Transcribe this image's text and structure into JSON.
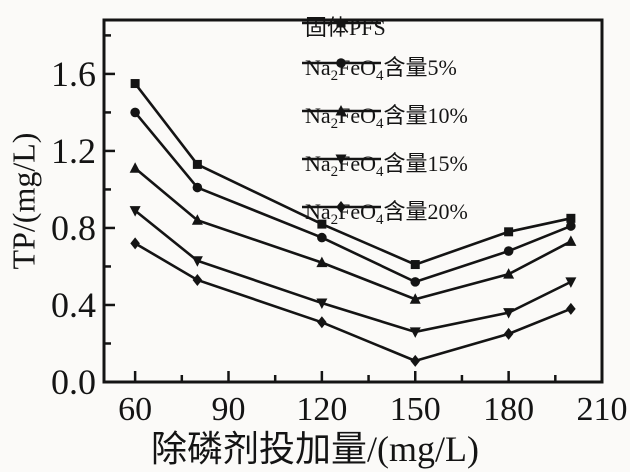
{
  "chart_data": {
    "type": "line",
    "title": "",
    "xlabel": "除磷剂投加量/(mg/L)",
    "ylabel": "TP/(mg/L)",
    "x": [
      60,
      80,
      120,
      150,
      180,
      200
    ],
    "series": [
      {
        "name": "固体PFS",
        "marker": "square",
        "values": [
          1.55,
          1.13,
          0.82,
          0.61,
          0.78,
          0.85
        ],
        "label_parts": [
          {
            "t": "固体PFS",
            "sub": false
          }
        ]
      },
      {
        "name": "Na2FeO4含量5%",
        "marker": "circle",
        "values": [
          1.4,
          1.01,
          0.75,
          0.52,
          0.68,
          0.81
        ],
        "label_parts": [
          {
            "t": "Na",
            "sub": false
          },
          {
            "t": "2",
            "sub": true
          },
          {
            "t": "FeO",
            "sub": false
          },
          {
            "t": "4",
            "sub": true
          },
          {
            "t": "含量5%",
            "sub": false
          }
        ]
      },
      {
        "name": "Na2FeO4含量10%",
        "marker": "triangle-up",
        "values": [
          1.11,
          0.84,
          0.62,
          0.43,
          0.56,
          0.73
        ],
        "label_parts": [
          {
            "t": "Na",
            "sub": false
          },
          {
            "t": "2",
            "sub": true
          },
          {
            "t": "FeO",
            "sub": false
          },
          {
            "t": "4",
            "sub": true
          },
          {
            "t": "含量10%",
            "sub": false
          }
        ]
      },
      {
        "name": "Na2FeO4含量15%",
        "marker": "triangle-down",
        "values": [
          0.89,
          0.63,
          0.41,
          0.26,
          0.36,
          0.52
        ],
        "label_parts": [
          {
            "t": "Na",
            "sub": false
          },
          {
            "t": "2",
            "sub": true
          },
          {
            "t": "FeO",
            "sub": false
          },
          {
            "t": "4",
            "sub": true
          },
          {
            "t": "含量15%",
            "sub": false
          }
        ]
      },
      {
        "name": "Na2FeO4含量20%",
        "marker": "diamond",
        "values": [
          0.72,
          0.53,
          0.31,
          0.11,
          0.25,
          0.38
        ],
        "label_parts": [
          {
            "t": "Na",
            "sub": false
          },
          {
            "t": "2",
            "sub": true
          },
          {
            "t": "FeO",
            "sub": false
          },
          {
            "t": "4",
            "sub": true
          },
          {
            "t": "含量20%",
            "sub": false
          }
        ]
      }
    ],
    "xlim": [
      50,
      210
    ],
    "ylim": [
      0,
      1.88
    ],
    "x_major_ticks": [
      60,
      90,
      120,
      150,
      180,
      210
    ],
    "x_minor_ticks": [
      75,
      105,
      135,
      165,
      195
    ],
    "y_major_ticks": [
      0.0,
      0.4,
      0.8,
      1.2,
      1.6
    ],
    "y_minor_ticks": [
      0.2,
      0.6,
      1.0,
      1.4,
      1.8
    ],
    "y_tick_decimals": 1,
    "grid": false,
    "legend_position": "top-right-inside",
    "line_color": "#141414",
    "background_color": "#fbfaf8"
  }
}
